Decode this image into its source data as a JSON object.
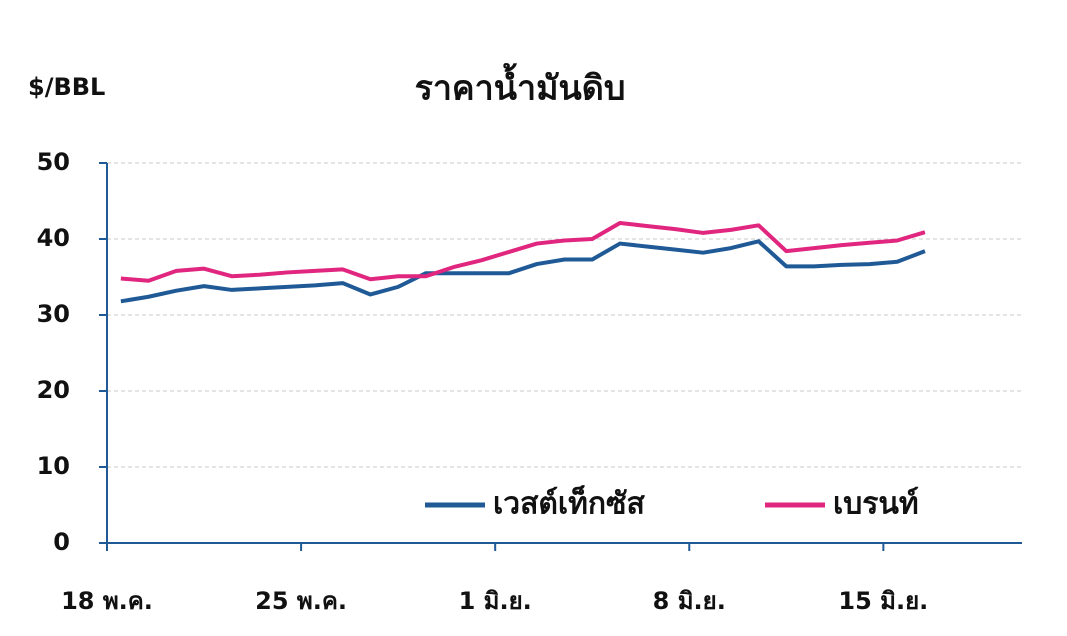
{
  "chart_data": {
    "type": "line",
    "title": "ราคาน้ำมันดิบ",
    "y_label": "$/BBL",
    "x": [
      0,
      1,
      2,
      3,
      4,
      5,
      6,
      7,
      8,
      9,
      10,
      11,
      12,
      13,
      14,
      15,
      16,
      17,
      18,
      19,
      20,
      21,
      22,
      23,
      24,
      25,
      26,
      27,
      28,
      29
    ],
    "series": [
      {
        "name": "เวสต์เท็กซัส",
        "color": "#1f5a96",
        "values": [
          31.8,
          32.4,
          33.2,
          33.8,
          33.3,
          33.5,
          33.7,
          33.9,
          34.2,
          32.7,
          33.7,
          35.5,
          35.5,
          35.5,
          35.5,
          36.7,
          37.3,
          37.3,
          39.4,
          39.0,
          38.6,
          38.2,
          38.8,
          39.7,
          36.4,
          36.4,
          36.6,
          36.7,
          37.0,
          38.4
        ]
      },
      {
        "name": "เบรนท์",
        "color": "#e0267e",
        "values": [
          34.8,
          34.5,
          35.8,
          36.1,
          35.1,
          35.3,
          35.6,
          35.8,
          36.0,
          34.7,
          35.1,
          35.1,
          36.3,
          37.2,
          38.3,
          39.4,
          39.8,
          40.0,
          42.1,
          41.7,
          41.3,
          40.8,
          41.2,
          41.8,
          38.4,
          38.8,
          39.2,
          39.5,
          39.8,
          40.9
        ]
      }
    ],
    "xlim": [
      -0.5,
      32.5
    ],
    "xticks": [
      {
        "value": -0.5,
        "label": "18 พ.ค."
      },
      {
        "value": 6.5,
        "label": "25 พ.ค."
      },
      {
        "value": 13.5,
        "label": "1 มิ.ย."
      },
      {
        "value": 20.5,
        "label": "8 มิ.ย."
      },
      {
        "value": 27.5,
        "label": "15 มิ.ย."
      }
    ],
    "ylim": [
      0,
      50
    ],
    "yticks": [
      0,
      10,
      20,
      30,
      40,
      50
    ],
    "grid": true,
    "legend": "lower right"
  }
}
